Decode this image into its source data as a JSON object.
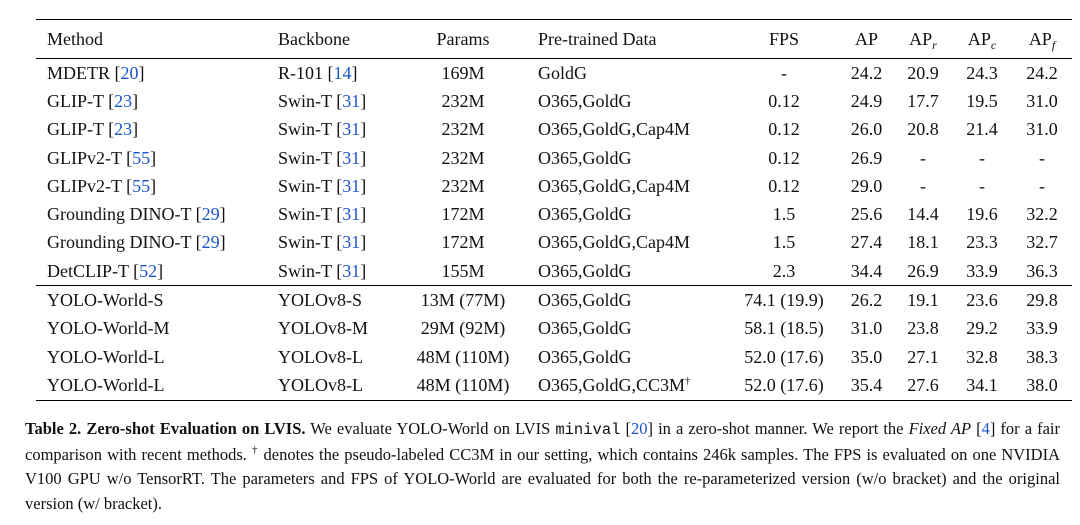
{
  "table": {
    "headers": {
      "method": "Method",
      "backbone": "Backbone",
      "params": "Params",
      "data": "Pre-trained Data",
      "fps": "FPS",
      "ap": "AP",
      "ap_base": "AP",
      "sub_r": "r",
      "sub_c": "c",
      "sub_f": "f"
    },
    "group_a": [
      {
        "method": "MDETR",
        "method_ref": "20",
        "backbone": "R-101",
        "backbone_ref": "14",
        "params": "169M",
        "data": "GoldG",
        "fps": "-",
        "ap": "24.2",
        "apr": "20.9",
        "apc": "24.3",
        "apf": "24.2"
      },
      {
        "method": "GLIP-T",
        "method_ref": "23",
        "backbone": "Swin-T",
        "backbone_ref": "31",
        "params": "232M",
        "data": "O365,GoldG",
        "fps": "0.12",
        "ap": "24.9",
        "apr": "17.7",
        "apc": "19.5",
        "apf": "31.0"
      },
      {
        "method": "GLIP-T",
        "method_ref": "23",
        "backbone": "Swin-T",
        "backbone_ref": "31",
        "params": "232M",
        "data": "O365,GoldG,Cap4M",
        "fps": "0.12",
        "ap": "26.0",
        "apr": "20.8",
        "apc": "21.4",
        "apf": "31.0"
      },
      {
        "method": "GLIPv2-T",
        "method_ref": "55",
        "backbone": "Swin-T",
        "backbone_ref": "31",
        "params": "232M",
        "data": "O365,GoldG",
        "fps": "0.12",
        "ap": "26.9",
        "apr": "-",
        "apc": "-",
        "apf": "-"
      },
      {
        "method": "GLIPv2-T",
        "method_ref": "55",
        "backbone": "Swin-T",
        "backbone_ref": "31",
        "params": "232M",
        "data": "O365,GoldG,Cap4M",
        "fps": "0.12",
        "ap": "29.0",
        "apr": "-",
        "apc": "-",
        "apf": "-"
      },
      {
        "method": "Grounding DINO-T",
        "method_ref": "29",
        "backbone": "Swin-T",
        "backbone_ref": "31",
        "params": "172M",
        "data": "O365,GoldG",
        "fps": "1.5",
        "ap": "25.6",
        "apr": "14.4",
        "apc": "19.6",
        "apf": "32.2"
      },
      {
        "method": "Grounding DINO-T",
        "method_ref": "29",
        "backbone": "Swin-T",
        "backbone_ref": "31",
        "params": "172M",
        "data": "O365,GoldG,Cap4M",
        "fps": "1.5",
        "ap": "27.4",
        "apr": "18.1",
        "apc": "23.3",
        "apf": "32.7"
      },
      {
        "method": "DetCLIP-T",
        "method_ref": "52",
        "backbone": "Swin-T",
        "backbone_ref": "31",
        "params": "155M",
        "data": "O365,GoldG",
        "fps": "2.3",
        "ap": "34.4",
        "apr": "26.9",
        "apc": "33.9",
        "apf": "36.3"
      }
    ],
    "group_b": [
      {
        "method": "YOLO-World-S",
        "backbone": "YOLOv8-S",
        "params": "13M (77M)",
        "data": "O365,GoldG",
        "fps": "74.1 (19.9)",
        "ap": "26.2",
        "apr": "19.1",
        "apc": "23.6",
        "apf": "29.8"
      },
      {
        "method": "YOLO-World-M",
        "backbone": "YOLOv8-M",
        "params": "29M (92M)",
        "data": "O365,GoldG",
        "fps": "58.1 (18.5)",
        "ap": "31.0",
        "apr": "23.8",
        "apc": "29.2",
        "apf": "33.9"
      },
      {
        "method": "YOLO-World-L",
        "backbone": "YOLOv8-L",
        "params": "48M (110M)",
        "data": "O365,GoldG",
        "fps": "52.0 (17.6)",
        "ap": "35.0",
        "apr": "27.1",
        "apc": "32.8",
        "apf": "38.3"
      },
      {
        "method": "YOLO-World-L",
        "backbone": "YOLOv8-L",
        "params": "48M (110M)",
        "data": "O365,GoldG,CC3M",
        "data_sup": "†",
        "fps": "52.0 (17.6)",
        "ap": "35.4",
        "apr": "27.6",
        "apc": "34.1",
        "apf": "38.0"
      }
    ]
  },
  "caption": {
    "label": "Table 2.",
    "title": "Zero-shot Evaluation on LVIS.",
    "t1": " We evaluate YOLO-World on LVIS ",
    "mono": "minival",
    "t2": " [",
    "ref1": "20",
    "t3": "] in a zero-shot manner. We report the ",
    "italic1": "Fixed AP",
    "t4": " [",
    "ref2": "4",
    "t5": "] for a fair comparison with recent methods. ",
    "dagger": "†",
    "t6": " denotes the pseudo-labeled CC3M in our setting, which contains 246k samples. The FPS is evaluated on one NVIDIA V100 GPU w/o TensorRT. The parameters and FPS of YOLO-World are evaluated for both the re-parameterized version (w/o bracket) and the original version (w/ bracket)."
  }
}
